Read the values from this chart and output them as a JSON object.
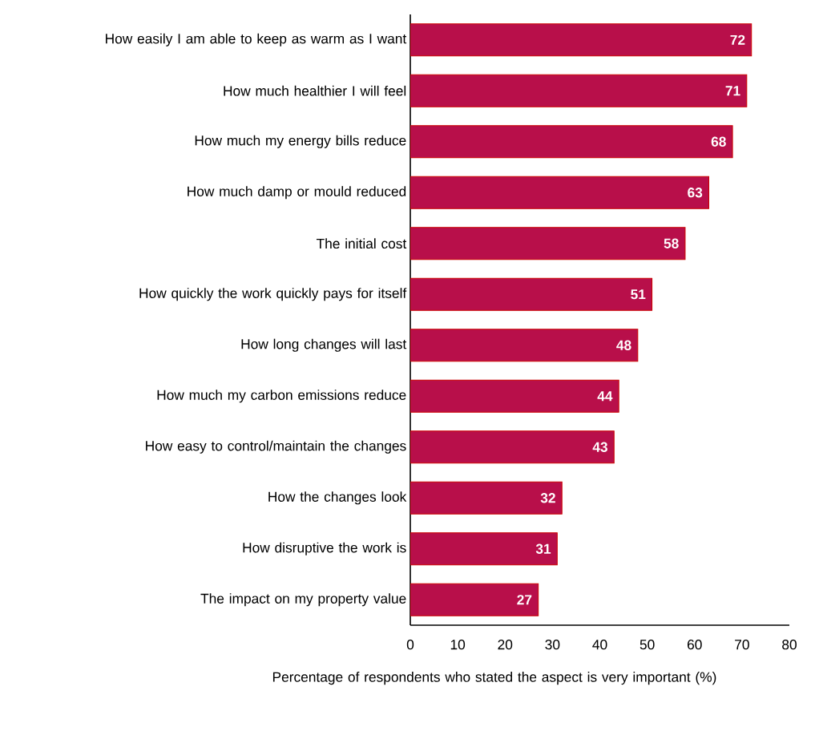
{
  "chart_data": {
    "type": "bar",
    "orientation": "horizontal",
    "xlabel": "Percentage of respondents who stated the aspect is very important (%)",
    "categories": [
      "How easily I am able to keep as warm as I want",
      "How much healthier I will feel",
      "How much my energy bills reduce",
      "How much damp or mould reduced",
      "The initial cost",
      "How quickly the work quickly pays for itself",
      "How long changes will last",
      "How much my carbon emissions reduce",
      "How easy to control/maintain the changes",
      "How the changes look",
      "How disruptive the work is",
      "The impact on my property value"
    ],
    "values": [
      72,
      71,
      68,
      63,
      58,
      51,
      48,
      44,
      43,
      32,
      31,
      27
    ],
    "color": "#b80f4a",
    "data_labels": true,
    "xlim": [
      0,
      80
    ],
    "xticks": [
      0,
      10,
      20,
      30,
      40,
      50,
      60,
      70,
      80
    ]
  }
}
